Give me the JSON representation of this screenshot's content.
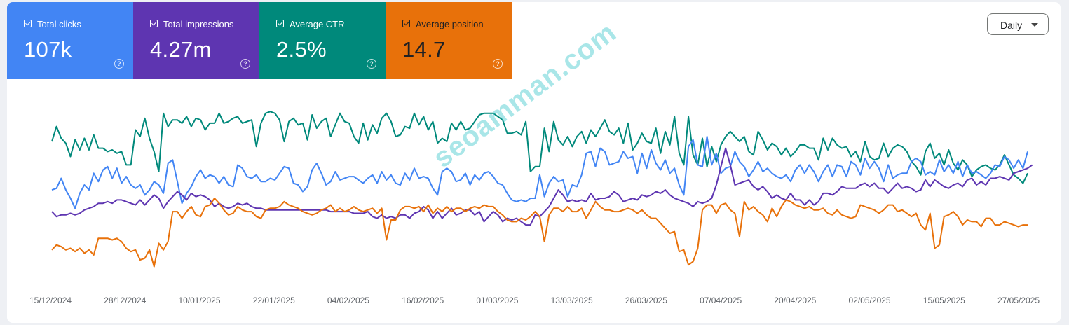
{
  "metrics": [
    {
      "label": "Total clicks",
      "value": "107k",
      "color": "#4285f4",
      "text": "light"
    },
    {
      "label": "Total impressions",
      "value": "4.27m",
      "color": "#5e35b1",
      "text": "light"
    },
    {
      "label": "Average CTR",
      "value": "2.5%",
      "color": "#00897b",
      "text": "light"
    },
    {
      "label": "Average position",
      "value": "14.7",
      "color": "#e8710a",
      "text": "dark"
    }
  ],
  "granularity": "Daily",
  "watermark": "seoamman.com",
  "chart_data": {
    "type": "line",
    "title": "",
    "xlabel": "",
    "ylabel": "",
    "x_ticks": [
      "15/12/2024",
      "28/12/2024",
      "10/01/2025",
      "22/01/2025",
      "04/02/2025",
      "16/02/2025",
      "01/03/2025",
      "13/03/2025",
      "26/03/2025",
      "07/04/2025",
      "20/04/2025",
      "02/05/2025",
      "15/05/2025",
      "27/05/2025"
    ],
    "grid": false,
    "legend": "none",
    "note_values": "relative per-series scale, 0 = chart bottom, 100 = chart top; one point per day",
    "series": [
      {
        "name": "Average CTR",
        "color": "#00897b",
        "values": [
          76,
          85,
          78,
          75,
          67,
          77,
          71,
          78,
          71,
          80,
          72,
          72,
          70,
          71,
          69,
          70,
          62,
          62,
          83,
          79,
          90,
          78,
          70,
          58,
          93,
          85,
          89,
          89,
          87,
          91,
          85,
          90,
          89,
          83,
          87,
          87,
          93,
          87,
          88,
          90,
          91,
          87,
          88,
          89,
          73,
          87,
          93,
          94,
          93,
          89,
          76,
          88,
          90,
          86,
          87,
          77,
          92,
          84,
          88,
          90,
          79,
          86,
          93,
          88,
          87,
          79,
          75,
          87,
          77,
          86,
          81,
          90,
          93,
          88,
          79,
          80,
          85,
          84,
          93,
          86,
          91,
          83,
          88,
          75,
          78,
          76,
          87,
          83,
          88,
          83,
          84,
          88,
          92,
          93,
          93,
          93,
          91,
          89,
          81,
          81,
          82,
          80,
          88,
          58,
          61,
          61,
          84,
          70,
          88,
          77,
          74,
          79,
          73,
          79,
          82,
          75,
          83,
          79,
          84,
          89,
          82,
          80,
          84,
          75,
          87,
          71,
          75,
          81,
          76,
          75,
          84,
          69,
          82,
          74,
          91,
          69,
          62,
          91,
          68,
          62,
          78,
          61,
          73,
          64,
          74,
          79,
          82,
          79,
          76,
          79,
          70,
          68,
          82,
          77,
          71,
          75,
          73,
          68,
          72,
          67,
          70,
          74,
          74,
          72,
          72,
          65,
          78,
          71,
          78,
          74,
          72,
          73,
          67,
          70,
          64,
          76,
          67,
          65,
          66,
          75,
          67,
          72,
          74,
          73,
          70,
          64,
          61,
          56,
          70,
          75,
          66,
          69,
          62,
          71,
          63,
          59,
          65,
          62,
          55,
          59,
          61,
          62,
          60,
          59,
          62,
          68,
          62,
          56,
          54,
          51,
          57
        ]
      },
      {
        "name": "Total clicks",
        "color": "#4285f4",
        "values": [
          47,
          48,
          54,
          47,
          42,
          36,
          45,
          50,
          47,
          57,
          52,
          59,
          61,
          54,
          60,
          51,
          55,
          50,
          48,
          50,
          44,
          47,
          52,
          50,
          45,
          63,
          65,
          52,
          39,
          45,
          49,
          55,
          59,
          54,
          56,
          55,
          51,
          55,
          50,
          49,
          62,
          60,
          55,
          54,
          56,
          52,
          52,
          54,
          53,
          57,
          61,
          60,
          51,
          50,
          46,
          49,
          59,
          63,
          57,
          50,
          52,
          58,
          53,
          54,
          55,
          55,
          53,
          51,
          54,
          56,
          51,
          58,
          53,
          56,
          51,
          50,
          57,
          53,
          60,
          54,
          55,
          54,
          48,
          44,
          58,
          60,
          58,
          52,
          53,
          57,
          50,
          56,
          53,
          57,
          58,
          55,
          51,
          50,
          45,
          41,
          40,
          41,
          40,
          42,
          42,
          56,
          43,
          51,
          55,
          52,
          53,
          43,
          50,
          49,
          56,
          69,
          70,
          61,
          72,
          70,
          62,
          63,
          64,
          70,
          66,
          67,
          57,
          69,
          60,
          71,
          63,
          59,
          65,
          57,
          60,
          50,
          44,
          73,
          77,
          62,
          61,
          79,
          62,
          69,
          57,
          60,
          61,
          70,
          64,
          61,
          55,
          59,
          64,
          58,
          60,
          57,
          55,
          54,
          56,
          52,
          59,
          62,
          57,
          62,
          58,
          52,
          58,
          62,
          55,
          62,
          61,
          55,
          64,
          62,
          56,
          66,
          60,
          64,
          60,
          52,
          62,
          54,
          56,
          57,
          57,
          64,
          66,
          64,
          56,
          58,
          56,
          65,
          58,
          62,
          57,
          64,
          55,
          62,
          57,
          58,
          56,
          54,
          57,
          62,
          61,
          67,
          65,
          60,
          65,
          60,
          70
        ]
      },
      {
        "name": "Total impressions",
        "color": "#5e35b1",
        "values": [
          34,
          31,
          32,
          32,
          33,
          32,
          33,
          35,
          36,
          37,
          39,
          39,
          40,
          39,
          41,
          41,
          40,
          39,
          38,
          41,
          38,
          41,
          44,
          42,
          36,
          40,
          43,
          46,
          44,
          41,
          45,
          43,
          44,
          43,
          41,
          37,
          39,
          37,
          36,
          37,
          39,
          38,
          39,
          37,
          36,
          36,
          35,
          35,
          35,
          35,
          35,
          35,
          35,
          35,
          35,
          35,
          35,
          35,
          35,
          35,
          34,
          34,
          34,
          34,
          34,
          33,
          33,
          33,
          34,
          31,
          30,
          32,
          30,
          31,
          30,
          32,
          32,
          30,
          33,
          34,
          37,
          35,
          30,
          34,
          30,
          33,
          36,
          32,
          33,
          35,
          35,
          32,
          34,
          28,
          31,
          34,
          32,
          28,
          30,
          29,
          30,
          28,
          26,
          26,
          32,
          31,
          34,
          37,
          42,
          47,
          44,
          40,
          41,
          40,
          41,
          40,
          45,
          41,
          42,
          42,
          43,
          46,
          44,
          40,
          41,
          42,
          41,
          44,
          43,
          44,
          46,
          45,
          47,
          44,
          42,
          41,
          40,
          39,
          37,
          40,
          39,
          40,
          42,
          50,
          61,
          72,
          62,
          50,
          51,
          52,
          53,
          49,
          47,
          49,
          46,
          42,
          44,
          42,
          41,
          45,
          41,
          41,
          38,
          41,
          38,
          40,
          45,
          45,
          44,
          46,
          49,
          48,
          48,
          48,
          50,
          51,
          49,
          51,
          48,
          48,
          45,
          48,
          51,
          48,
          49,
          48,
          46,
          47,
          53,
          49,
          53,
          51,
          49,
          48,
          50,
          51,
          49,
          53,
          54,
          50,
          52,
          50,
          54,
          54,
          55,
          54,
          53,
          57,
          58,
          59,
          60,
          62
        ]
      },
      {
        "name": "Average position",
        "color": "#e8710a",
        "values": [
          11,
          14,
          13,
          11,
          12,
          10,
          12,
          9,
          11,
          8,
          18,
          18,
          18,
          17,
          18,
          16,
          12,
          10,
          11,
          5,
          6,
          11,
          1,
          15,
          11,
          16,
          34,
          34,
          30,
          34,
          37,
          32,
          31,
          37,
          38,
          42,
          39,
          35,
          32,
          33,
          37,
          35,
          34,
          34,
          31,
          30,
          35,
          36,
          36,
          37,
          40,
          38,
          37,
          36,
          34,
          33,
          32,
          33,
          35,
          36,
          38,
          34,
          36,
          34,
          35,
          37,
          35,
          34,
          35,
          36,
          33,
          36,
          17,
          29,
          29,
          35,
          37,
          37,
          36,
          37,
          34,
          38,
          33,
          36,
          34,
          37,
          34,
          36,
          36,
          34,
          36,
          37,
          36,
          38,
          37,
          37,
          34,
          32,
          29,
          28,
          28,
          30,
          29,
          31,
          34,
          31,
          16,
          32,
          36,
          36,
          34,
          37,
          34,
          34,
          36,
          30,
          35,
          40,
          37,
          35,
          35,
          34,
          34,
          35,
          36,
          35,
          33,
          35,
          32,
          30,
          30,
          27,
          24,
          21,
          22,
          10,
          11,
          2,
          4,
          12,
          35,
          38,
          38,
          33,
          38,
          39,
          35,
          33,
          19,
          40,
          35,
          37,
          34,
          32,
          28,
          36,
          31,
          37,
          41,
          40,
          38,
          37,
          36,
          37,
          35,
          35,
          36,
          33,
          32,
          35,
          32,
          31,
          30,
          31,
          38,
          37,
          36,
          35,
          33,
          35,
          38,
          38,
          34,
          35,
          33,
          31,
          33,
          26,
          23,
          33,
          12,
          14,
          31,
          32,
          34,
          31,
          26,
          29,
          28,
          28,
          25,
          30,
          30,
          26,
          26,
          28,
          27,
          26,
          25,
          26,
          26
        ]
      }
    ]
  }
}
